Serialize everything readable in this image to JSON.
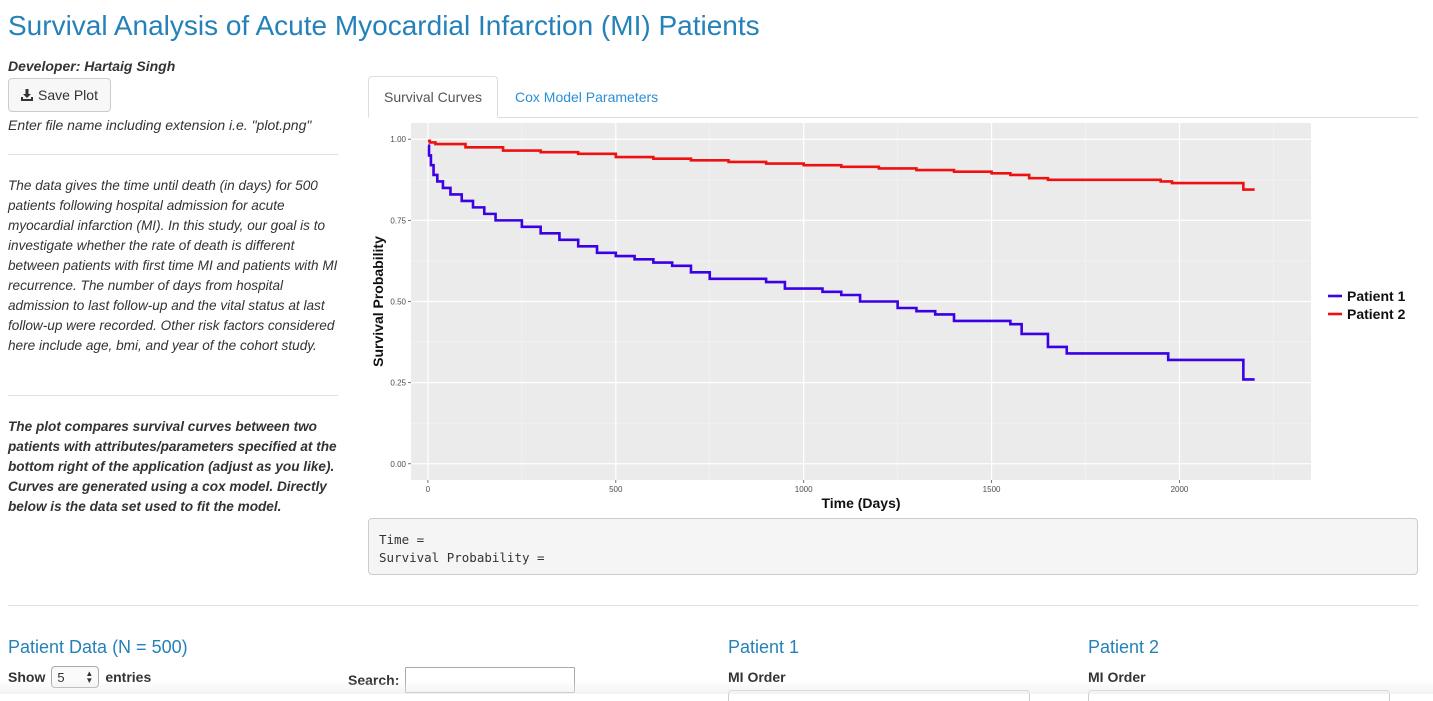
{
  "page": {
    "title": "Survival Analysis of Acute Myocardial Infarction (MI) Patients",
    "developer": "Developer: Hartaig Singh"
  },
  "sidebar": {
    "save_button": "Save Plot",
    "save_icon": "download-icon",
    "filename_hint": "Enter file name including extension i.e. \"plot.png\"",
    "description": "The data gives the time until death (in days) for 500 patients following hospital admission for acute myocardial infarction (MI). In this study, our goal is to investigate whether the rate of death is different between patients with first time MI and patients with MI recurrence. The number of days from hospital admission to last follow-up and the vital status at last follow-up were recorded. Other risk factors considered here include age, bmi, and year of the cohort study.",
    "plot_note": "The plot compares survival curves between two patients with attributes/parameters specified at the bottom right of the application (adjust as you like). Curves are generated using a cox model. Directly below is the data set used to fit the model."
  },
  "tabs": [
    {
      "label": "Survival Curves",
      "active": true
    },
    {
      "label": "Cox Model Parameters",
      "active": false
    }
  ],
  "chart_data": {
    "type": "line",
    "xlabel": "Time (Days)",
    "ylabel": "Survival Probability",
    "xlim": [
      -45,
      2350
    ],
    "ylim": [
      -0.05,
      1.05
    ],
    "x_ticks": [
      "0",
      "500",
      "1000",
      "1500",
      "2000"
    ],
    "y_ticks": [
      "0.00",
      "0.25",
      "0.50",
      "0.75",
      "1.00"
    ],
    "grid": true,
    "legend_position": "right",
    "series": [
      {
        "name": "Patient 1",
        "color": "#3b00e6",
        "points": [
          [
            0,
            0.98
          ],
          [
            3,
            0.95
          ],
          [
            8,
            0.92
          ],
          [
            15,
            0.89
          ],
          [
            25,
            0.87
          ],
          [
            40,
            0.85
          ],
          [
            60,
            0.83
          ],
          [
            90,
            0.81
          ],
          [
            120,
            0.79
          ],
          [
            150,
            0.77
          ],
          [
            180,
            0.75
          ],
          [
            250,
            0.73
          ],
          [
            300,
            0.71
          ],
          [
            350,
            0.69
          ],
          [
            400,
            0.67
          ],
          [
            450,
            0.65
          ],
          [
            500,
            0.64
          ],
          [
            550,
            0.63
          ],
          [
            600,
            0.62
          ],
          [
            650,
            0.61
          ],
          [
            700,
            0.59
          ],
          [
            750,
            0.57
          ],
          [
            900,
            0.56
          ],
          [
            950,
            0.54
          ],
          [
            1050,
            0.53
          ],
          [
            1100,
            0.52
          ],
          [
            1150,
            0.5
          ],
          [
            1250,
            0.48
          ],
          [
            1300,
            0.47
          ],
          [
            1350,
            0.46
          ],
          [
            1400,
            0.44
          ],
          [
            1500,
            0.44
          ],
          [
            1550,
            0.43
          ],
          [
            1580,
            0.4
          ],
          [
            1650,
            0.36
          ],
          [
            1700,
            0.34
          ],
          [
            1950,
            0.34
          ],
          [
            1970,
            0.32
          ],
          [
            2170,
            0.32
          ],
          [
            2170,
            0.26
          ],
          [
            2200,
            0.26
          ]
        ]
      },
      {
        "name": "Patient 2",
        "color": "#ee1111",
        "points": [
          [
            0,
            0.995
          ],
          [
            5,
            0.99
          ],
          [
            20,
            0.985
          ],
          [
            100,
            0.975
          ],
          [
            200,
            0.965
          ],
          [
            300,
            0.96
          ],
          [
            400,
            0.955
          ],
          [
            500,
            0.945
          ],
          [
            600,
            0.94
          ],
          [
            700,
            0.935
          ],
          [
            800,
            0.93
          ],
          [
            900,
            0.925
          ],
          [
            1000,
            0.92
          ],
          [
            1100,
            0.915
          ],
          [
            1200,
            0.91
          ],
          [
            1300,
            0.905
          ],
          [
            1400,
            0.9
          ],
          [
            1500,
            0.895
          ],
          [
            1550,
            0.89
          ],
          [
            1600,
            0.88
          ],
          [
            1650,
            0.875
          ],
          [
            1950,
            0.87
          ],
          [
            1980,
            0.865
          ],
          [
            2170,
            0.865
          ],
          [
            2170,
            0.845
          ],
          [
            2200,
            0.845
          ]
        ]
      }
    ]
  },
  "hover_info": {
    "time_label": "Time =",
    "prob_label": "Survival Probability ="
  },
  "table": {
    "title": "Patient Data (N = 500)",
    "show_label": "Show",
    "page_length": "5",
    "entries_label": "entries",
    "search_label": "Search:",
    "search_value": ""
  },
  "patient1": {
    "title": "Patient 1",
    "mi_order_label": "MI Order"
  },
  "patient2": {
    "title": "Patient 2",
    "mi_order_label": "MI Order"
  }
}
